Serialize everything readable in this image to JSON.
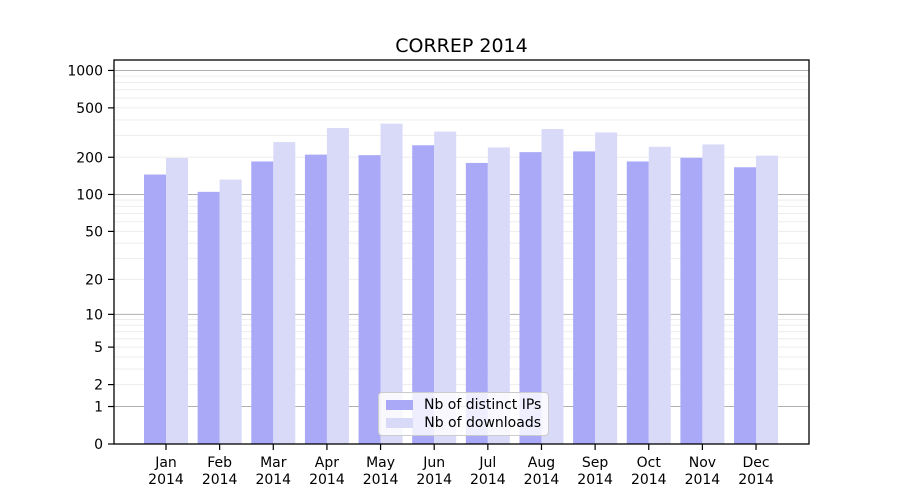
{
  "chart_data": {
    "type": "bar",
    "title": "CORREP 2014",
    "x_tick_months": [
      "Jan",
      "Feb",
      "Mar",
      "Apr",
      "May",
      "Jun",
      "Jul",
      "Aug",
      "Sep",
      "Oct",
      "Nov",
      "Dec"
    ],
    "x_tick_year": "2014",
    "series": [
      {
        "name": "Nb of distinct IPs",
        "color": "#a9a9f8",
        "values": [
          145,
          105,
          185,
          210,
          208,
          250,
          180,
          220,
          223,
          185,
          198,
          166
        ]
      },
      {
        "name": "Nb of downloads",
        "color": "#d9d9f8",
        "values": [
          197,
          132,
          265,
          344,
          373,
          322,
          240,
          338,
          317,
          243,
          254,
          206
        ]
      }
    ],
    "yscale": "log1p",
    "yticks": [
      0,
      1,
      2,
      5,
      10,
      20,
      50,
      100,
      200,
      500,
      1000
    ],
    "ylim": [
      0,
      1200
    ],
    "grid": true,
    "legend_position": "lower center",
    "colors": {
      "grid_major": "#b0b0b0",
      "grid_minor": "#ededed",
      "axis": "#000000",
      "background": "#ffffff"
    }
  }
}
